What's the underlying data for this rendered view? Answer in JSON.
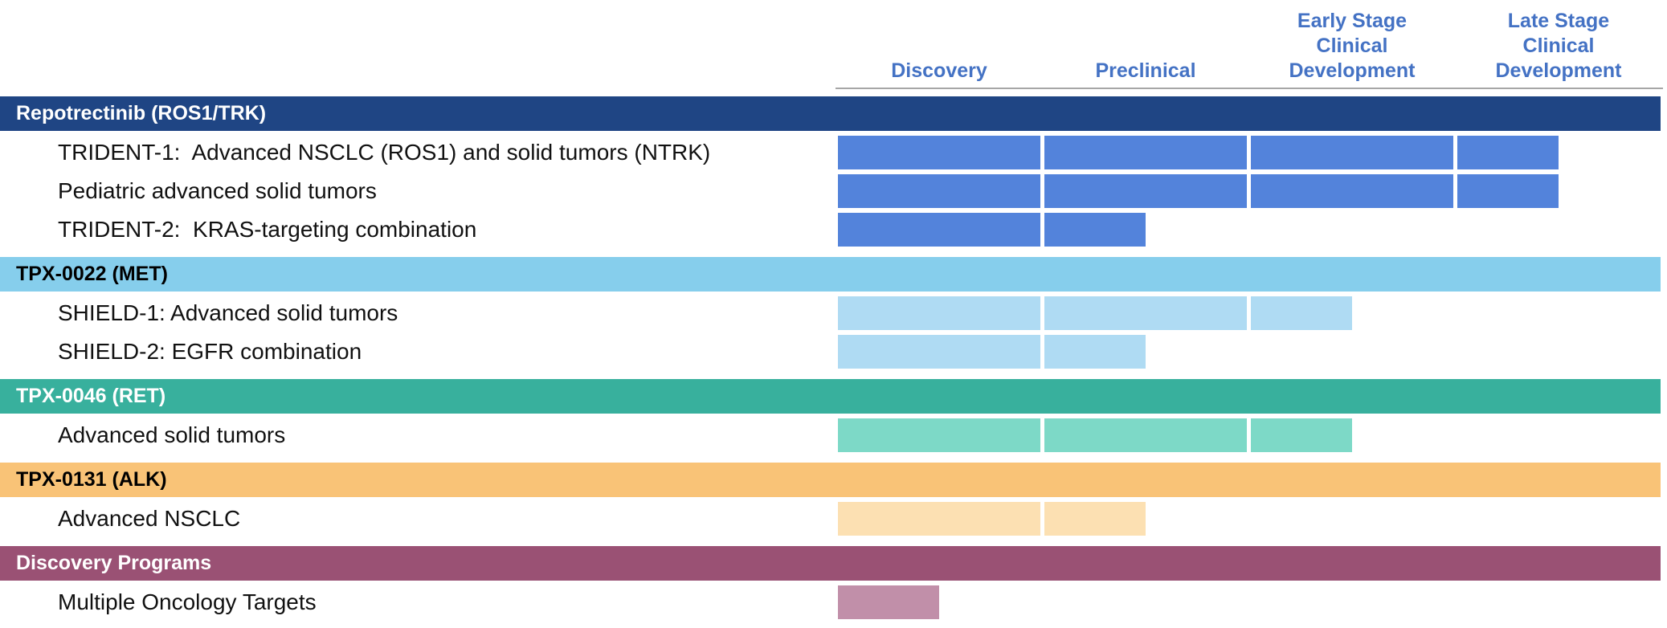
{
  "chart_data": {
    "type": "bar",
    "title": "",
    "stage_columns": [
      "Discovery",
      "Preclinical",
      "Early Stage Clinical Development",
      "Late Stage Clinical Development"
    ],
    "stage_axis": {
      "label_color": "#4472C4",
      "line_color": "#A6A6A6",
      "stage_range": [
        0,
        4
      ],
      "partial_stage_fraction": 0.5
    },
    "sections": [
      {
        "name": "Repotrectinib (ROS1/TRK)",
        "band_color": "#1F4584",
        "band_text_color": "#FFFFFF",
        "bar_color": "#5383DB",
        "programs": [
          {
            "label": "TRIDENT-1:  Advanced NSCLC (ROS1) and solid tumors (NTRK)",
            "stages_reached": 3.5
          },
          {
            "label": "Pediatric advanced solid tumors",
            "stages_reached": 3.5
          },
          {
            "label": "TRIDENT-2:  KRAS-targeting combination",
            "stages_reached": 1.5
          }
        ]
      },
      {
        "name": "TPX-0022 (MET)",
        "band_color": "#86CEEC",
        "band_text_color": "#000000",
        "bar_color": "#AFDBF3",
        "programs": [
          {
            "label": "SHIELD-1: Advanced solid tumors",
            "stages_reached": 2.5
          },
          {
            "label": "SHIELD-2: EGFR combination",
            "stages_reached": 1.5
          }
        ]
      },
      {
        "name": "TPX-0046 (RET)",
        "band_color": "#38B09D",
        "band_text_color": "#FFFFFF",
        "bar_color": "#7DD9C7",
        "programs": [
          {
            "label": "Advanced solid tumors",
            "stages_reached": 2.5
          }
        ]
      },
      {
        "name": "TPX-0131 (ALK)",
        "band_color": "#F9C377",
        "band_text_color": "#000000",
        "bar_color": "#FCE0B2",
        "programs": [
          {
            "label": "Advanced NSCLC",
            "stages_reached": 1.5
          }
        ]
      },
      {
        "name": "Discovery Programs",
        "band_color": "#9A5174",
        "band_text_color": "#FFFFFF",
        "bar_color": "#C18FA9",
        "programs": [
          {
            "label": "Multiple Oncology Targets",
            "stages_reached": 0.5
          }
        ]
      }
    ]
  }
}
